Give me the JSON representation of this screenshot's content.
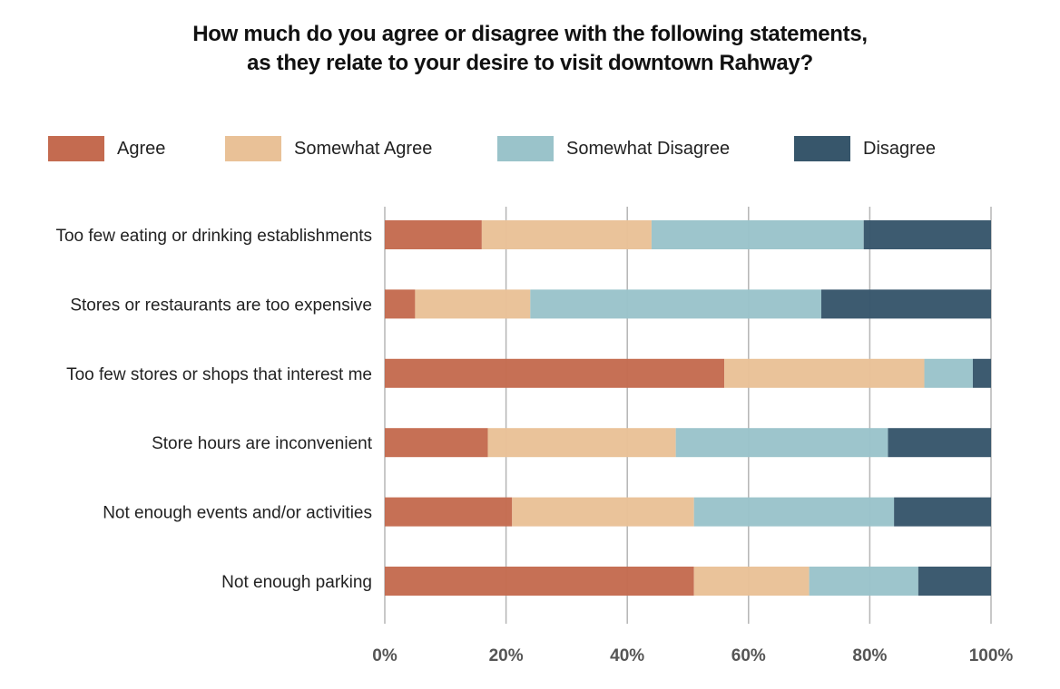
{
  "chart_data": {
    "type": "bar",
    "orientation": "horizontal",
    "stacked": true,
    "title": "How much do you agree or disagree with the following statements, as they relate to your desire to visit downtown Rahway?",
    "title_lines": [
      "How much do you agree or disagree with the following statements,",
      "as they relate to your desire to visit downtown Rahway?"
    ],
    "categories": [
      "Too few eating or drinking establishments",
      "Stores or restaurants are too expensive",
      "Too few stores or shops that interest me",
      "Store hours are inconvenient",
      "Not enough events and/or activities",
      "Not enough parking"
    ],
    "series": [
      {
        "name": "Agree",
        "color": "#C46B50",
        "values": [
          16,
          5,
          56,
          17,
          21,
          51
        ]
      },
      {
        "name": "Somewhat Agree",
        "color": "#E9C197",
        "values": [
          28,
          19,
          33,
          31,
          30,
          19
        ]
      },
      {
        "name": "Somewhat Disagree",
        "color": "#9AC3CA",
        "values": [
          35,
          48,
          8,
          35,
          33,
          18
        ]
      },
      {
        "name": "Disagree",
        "color": "#37566B",
        "values": [
          21,
          28,
          3,
          17,
          16,
          12
        ]
      }
    ],
    "xlabel": "",
    "ylabel": "",
    "xlim": [
      0,
      100
    ],
    "x_ticks": [
      "0%",
      "20%",
      "40%",
      "60%",
      "80%",
      "100%"
    ],
    "x_tick_values": [
      0,
      20,
      40,
      60,
      80,
      100
    ],
    "grid": true,
    "legend_position": "top"
  }
}
